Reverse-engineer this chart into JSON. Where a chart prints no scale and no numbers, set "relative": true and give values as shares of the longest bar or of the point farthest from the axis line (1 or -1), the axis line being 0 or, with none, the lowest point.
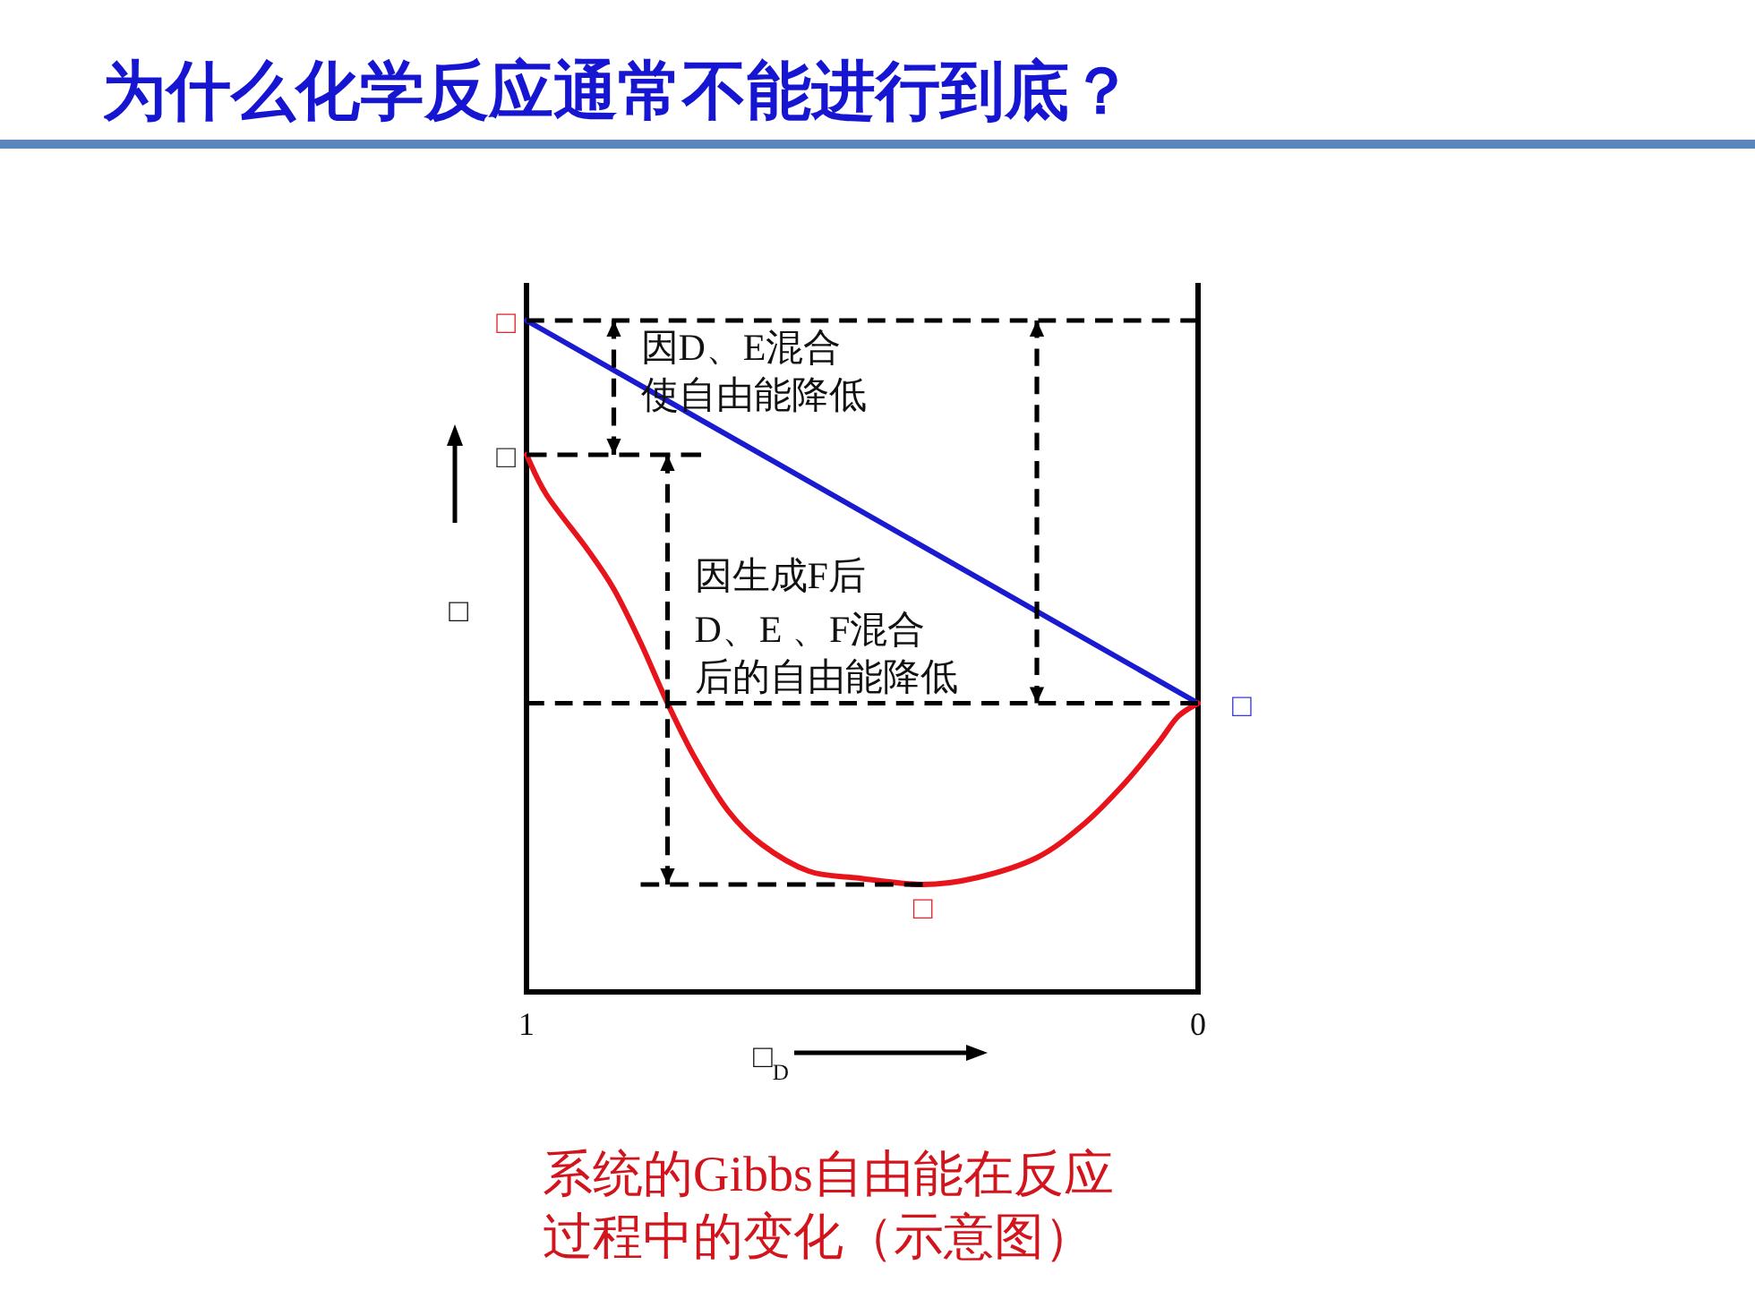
{
  "chart_data": {
    "type": "line",
    "title": "为什么化学反应通常不能进行到底？",
    "xlabel": "□$_{D}$",
    "ylabel": "□",
    "relative": true,
    "xlim": [
      1,
      0
    ],
    "xticks": [
      1,
      0
    ],
    "series": [
      {
        "color": "#1a1ad0",
        "x": [
          1,
          0
        ],
        "values": [
          1,
          0.43
        ]
      },
      {
        "color": "#e8141c",
        "x": [
          1,
          0.97,
          0.91,
          0.87,
          0.83,
          0.79,
          0.75,
          0.7,
          0.65,
          0.58,
          0.51,
          0.41,
          0.33,
          0.24,
          0.17,
          0.11,
          0.06,
          0.03,
          0
        ],
        "values": [
          0.8,
          0.74,
          0.66,
          0.6,
          0.52,
          0.43,
          0.35,
          0.27,
          0.22,
          0.18,
          0.17,
          0.16,
          0.17,
          0.2,
          0.25,
          0.31,
          0.37,
          0.41,
          0.43
        ]
      },
      {
        "color": "#000000",
        "line_style": "dashed",
        "x": [
          1,
          0
        ],
        "values": [
          1,
          1
        ]
      },
      {
        "color": "#000000",
        "line_style": "dashed",
        "x": [
          1,
          0.74
        ],
        "values": [
          0.8,
          0.8
        ]
      },
      {
        "color": "#000000",
        "line_style": "dashed",
        "x": [
          1,
          0
        ],
        "values": [
          0.43,
          0.43
        ]
      },
      {
        "color": "#000000",
        "line_style": "dashed",
        "x": [
          0.83,
          0.41
        ],
        "values": [
          0.16,
          0.16
        ]
      },
      {
        "color": "#000000",
        "line_style": "dashed",
        "x": [
          0.87,
          0.87
        ],
        "values": [
          1,
          0.8
        ]
      },
      {
        "color": "#000000",
        "line_style": "dashed",
        "x": [
          0.79,
          0.79
        ],
        "values": [
          0.8,
          0.16
        ]
      },
      {
        "color": "#000000",
        "line_style": "dashed",
        "x": [
          0.24,
          0.24
        ],
        "values": [
          1,
          0.43
        ]
      }
    ],
    "annotations": [
      {
        "text": "□",
        "x": 1,
        "y": 1
      },
      {
        "text": "□",
        "x": 1,
        "y": 0.8
      },
      {
        "text": "□",
        "x": 0,
        "y": 0.43
      },
      {
        "text": "□",
        "x": 0.41,
        "y": 0.16
      },
      {
        "text": "因D、E混合",
        "x": 0.87,
        "y": 0.96
      },
      {
        "text": "使自由能降低",
        "x": 0.87,
        "y": 0.89
      },
      {
        "text": "因生成F后",
        "x": 0.79,
        "y": 0.62
      },
      {
        "text": "D、E 、F混合",
        "x": 0.79,
        "y": 0.54
      },
      {
        "text": "后的自由能降低",
        "x": 0.79,
        "y": 0.47
      },
      "系统的Gibbs自由能在反应过程中的变化（示意图）"
    ]
  }
}
